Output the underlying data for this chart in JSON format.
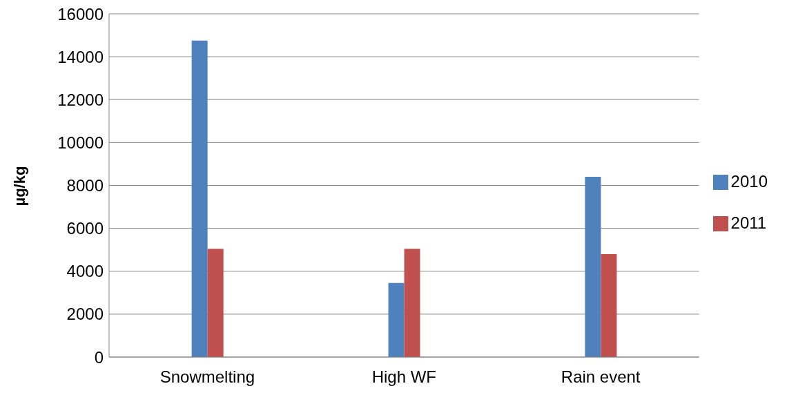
{
  "chart_data": {
    "type": "bar",
    "ylabel": "µg/kg",
    "categories": [
      "Snowmelting",
      "High WF",
      "Rain event"
    ],
    "series": [
      {
        "name": "2010",
        "color": "#4f81bd",
        "values": [
          14750,
          3450,
          8400
        ]
      },
      {
        "name": "2011",
        "color": "#c0504d",
        "values": [
          5050,
          5050,
          4800
        ]
      }
    ],
    "ylim": [
      0,
      16000
    ],
    "yticks": [
      0,
      2000,
      4000,
      6000,
      8000,
      10000,
      12000,
      14000,
      16000
    ],
    "grid": "y",
    "legend": "right"
  }
}
